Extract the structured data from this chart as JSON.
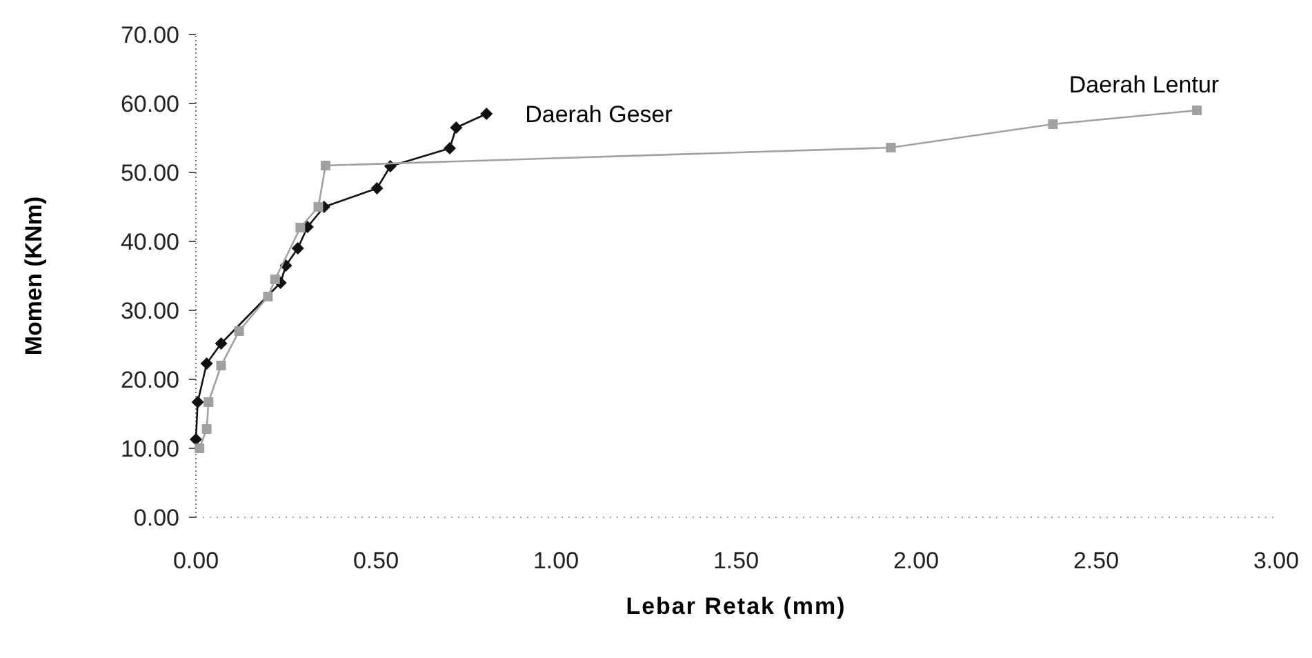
{
  "chart_data": {
    "type": "line",
    "xlabel": "Lebar Retak (mm)",
    "ylabel": "Momen (KNm)",
    "xlim": [
      0,
      3
    ],
    "xticks": [
      {
        "value": 0,
        "label": "0.00"
      },
      {
        "value": 0.5,
        "label": "0.50"
      },
      {
        "value": 1,
        "label": "1.00"
      },
      {
        "value": 1.5,
        "label": "1.50"
      },
      {
        "value": 2,
        "label": "2.00"
      },
      {
        "value": 2.5,
        "label": "2.50"
      },
      {
        "value": 3,
        "label": "3.00"
      }
    ],
    "ylim": [
      0,
      70
    ],
    "yticks": [
      {
        "value": 0,
        "label": "0.00"
      },
      {
        "value": 10,
        "label": "10.00"
      },
      {
        "value": 20,
        "label": "20.00"
      },
      {
        "value": 30,
        "label": "30.00"
      },
      {
        "value": 40,
        "label": "40.00"
      },
      {
        "value": 50,
        "label": "50.00"
      },
      {
        "value": 60,
        "label": "60.00"
      },
      {
        "value": 70,
        "label": "70.00"
      }
    ],
    "line_style": "solid",
    "series": [
      {
        "name": "Daerah Geser",
        "color": "#111111",
        "marker": "diamond",
        "x": [
          0,
          0.005,
          0.03,
          0.07,
          0.235,
          0.25,
          0.283,
          0.31,
          0.356,
          0.503,
          0.54,
          0.705,
          0.723,
          0.807
        ],
        "values": [
          11.3,
          16.7,
          22.3,
          25.2,
          34,
          36.5,
          39,
          42.1,
          45,
          47.7,
          50.9,
          53.5,
          56.5,
          58.5
        ]
      },
      {
        "name": "Daerah Lentur",
        "color": "#a0a0a0",
        "marker": "square",
        "x": [
          0.01,
          0.03,
          0.035,
          0.07,
          0.12,
          0.2,
          0.22,
          0.29,
          0.34,
          0.36,
          1.93,
          2.38,
          2.78
        ],
        "values": [
          10,
          12.8,
          16.7,
          22,
          27,
          32,
          34.5,
          42,
          45,
          51,
          53.6,
          57,
          59
        ]
      }
    ]
  }
}
